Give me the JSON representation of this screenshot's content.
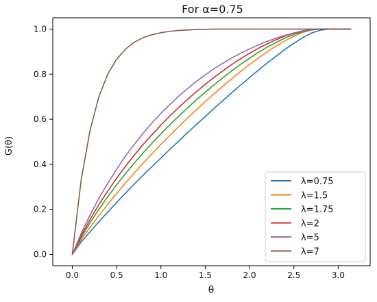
{
  "chart_data": {
    "type": "line",
    "title": "For α=0.75",
    "xlabel": "θ",
    "ylabel": "G(θ)",
    "xlim": [
      -0.22,
      3.36
    ],
    "ylim": [
      -0.05,
      1.05
    ],
    "xticks": [
      0.0,
      0.5,
      1.0,
      1.5,
      2.0,
      2.5,
      3.0
    ],
    "xtick_labels": [
      "0.0",
      "0.5",
      "1.0",
      "1.5",
      "2.0",
      "2.5",
      "3.0"
    ],
    "yticks": [
      0.0,
      0.2,
      0.4,
      0.6,
      0.8,
      1.0
    ],
    "ytick_labels": [
      "0.0",
      "0.2",
      "0.4",
      "0.6",
      "0.8",
      "1.0"
    ],
    "grid": false,
    "legend_position": "lower-right",
    "x": [
      0.0,
      0.1,
      0.2,
      0.3,
      0.4,
      0.5,
      0.6,
      0.7,
      0.8,
      0.9,
      1.0,
      1.1,
      1.2,
      1.3,
      1.4,
      1.5,
      1.6,
      1.7,
      1.8,
      1.9,
      2.0,
      2.1,
      2.2,
      2.3,
      2.4,
      2.5,
      2.6,
      2.7,
      2.8,
      2.9,
      3.0,
      3.1,
      3.14
    ],
    "series": [
      {
        "name": "λ=0.75",
        "color": "#1f77b4",
        "values": [
          0.0,
          0.055,
          0.1,
          0.145,
          0.188,
          0.23,
          0.272,
          0.312,
          0.352,
          0.39,
          0.428,
          0.466,
          0.503,
          0.54,
          0.576,
          0.612,
          0.648,
          0.683,
          0.718,
          0.752,
          0.785,
          0.818,
          0.85,
          0.88,
          0.91,
          0.937,
          0.962,
          0.983,
          0.995,
          1.0,
          1.0,
          1.0,
          1.0
        ]
      },
      {
        "name": "λ=1.5",
        "color": "#ff7f0e",
        "values": [
          0.0,
          0.065,
          0.12,
          0.172,
          0.222,
          0.27,
          0.317,
          0.362,
          0.405,
          0.447,
          0.488,
          0.528,
          0.567,
          0.605,
          0.642,
          0.678,
          0.713,
          0.747,
          0.78,
          0.812,
          0.843,
          0.872,
          0.9,
          0.925,
          0.948,
          0.968,
          0.985,
          0.996,
          1.0,
          1.0,
          1.0,
          1.0,
          1.0
        ]
      },
      {
        "name": " λ=1.75",
        "color": "#2ca02c",
        "values": [
          0.0,
          0.075,
          0.14,
          0.2,
          0.256,
          0.309,
          0.359,
          0.406,
          0.451,
          0.494,
          0.535,
          0.575,
          0.613,
          0.65,
          0.686,
          0.72,
          0.753,
          0.785,
          0.815,
          0.844,
          0.871,
          0.897,
          0.92,
          0.941,
          0.96,
          0.976,
          0.989,
          0.997,
          1.0,
          1.0,
          1.0,
          1.0,
          1.0
        ]
      },
      {
        "name": "λ=2",
        "color": "#d62728",
        "values": [
          0.0,
          0.083,
          0.155,
          0.221,
          0.281,
          0.338,
          0.391,
          0.441,
          0.488,
          0.532,
          0.574,
          0.614,
          0.652,
          0.688,
          0.722,
          0.755,
          0.786,
          0.815,
          0.843,
          0.869,
          0.893,
          0.915,
          0.935,
          0.953,
          0.969,
          0.982,
          0.992,
          0.998,
          1.0,
          1.0,
          1.0,
          1.0,
          1.0
        ]
      },
      {
        "name": "λ=5",
        "color": "#9467bd",
        "values": [
          0.0,
          0.093,
          0.175,
          0.249,
          0.316,
          0.378,
          0.436,
          0.489,
          0.538,
          0.584,
          0.626,
          0.665,
          0.702,
          0.736,
          0.768,
          0.797,
          0.824,
          0.849,
          0.872,
          0.893,
          0.912,
          0.93,
          0.946,
          0.96,
          0.972,
          0.983,
          0.992,
          0.998,
          1.0,
          1.0,
          1.0,
          1.0,
          1.0
        ]
      },
      {
        "name": "λ=7",
        "color": "#8c564b",
        "values": [
          0.0,
          0.33,
          0.55,
          0.7,
          0.8,
          0.866,
          0.911,
          0.942,
          0.962,
          0.975,
          0.984,
          0.99,
          0.994,
          0.996,
          0.998,
          0.999,
          1.0,
          1.0,
          1.0,
          1.0,
          1.0,
          1.0,
          1.0,
          1.0,
          1.0,
          1.0,
          1.0,
          1.0,
          1.0,
          1.0,
          1.0,
          1.0,
          1.0
        ]
      }
    ]
  }
}
